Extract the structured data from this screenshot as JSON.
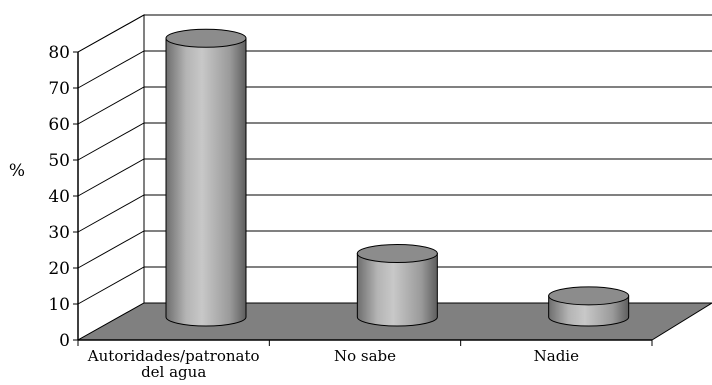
{
  "chart_data": {
    "type": "bar",
    "style": "3d-cylinder",
    "title": "",
    "xlabel": "",
    "ylabel": "%",
    "categories": [
      "Autoridades/patronato del agua",
      "No sabe",
      "Nadie"
    ],
    "category_lines": [
      [
        "Autoridades/patronato",
        "del agua"
      ],
      [
        "No sabe"
      ],
      [
        "Nadie"
      ]
    ],
    "values": [
      79,
      18,
      6
    ],
    "ylim": [
      0,
      80
    ],
    "yticks": [
      "0",
      "10",
      "20",
      "30",
      "40",
      "50",
      "60",
      "70",
      "80"
    ],
    "grid": true,
    "legend": "none",
    "colors": {
      "floor": "#808080",
      "bar_body": "#a8a8a8",
      "bar_top": "#8c8c8c",
      "gridline": "#000000"
    }
  }
}
